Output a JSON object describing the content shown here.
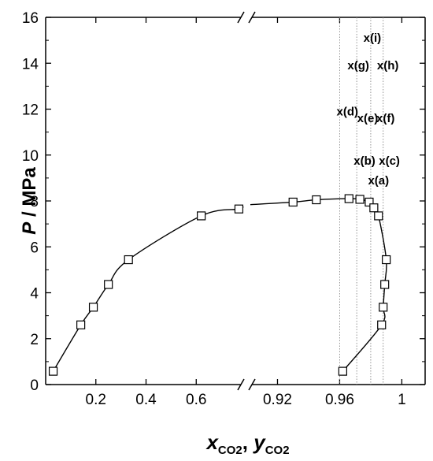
{
  "chart_data": {
    "type": "scatter",
    "ylabel": {
      "symbol": "P",
      "rest": " / MPa"
    },
    "xlabel": {
      "x_symbol": "x",
      "x_sub": "CO2",
      "sep": ", ",
      "y_symbol": "y",
      "y_sub": "CO2"
    },
    "ylim": [
      0,
      16
    ],
    "y_ticks": [
      0,
      2,
      4,
      6,
      8,
      10,
      12,
      14,
      16
    ],
    "x_left_segment": {
      "range": [
        0.0,
        0.8
      ],
      "ticks": [
        0.2,
        0.4,
        0.6
      ],
      "tick_labels": [
        "0.2",
        "0.4",
        "0.6"
      ]
    },
    "x_right_segment": {
      "range": [
        0.9,
        1.015
      ],
      "ticks": [
        0.92,
        0.96,
        1.0
      ],
      "tick_labels": [
        "0.92",
        "0.96",
        "1"
      ]
    },
    "axis_break": true,
    "grid": false,
    "legend": "none",
    "series": [
      {
        "marker": "open-square",
        "x": [
          0.03,
          0.14,
          0.19,
          0.25,
          0.33,
          0.62,
          0.77,
          0.93,
          0.945,
          0.966,
          0.973,
          0.979,
          0.982,
          0.985
        ],
        "y": [
          0.58,
          2.6,
          3.37,
          4.36,
          5.44,
          7.35,
          7.65,
          7.95,
          8.05,
          8.1,
          8.07,
          7.95,
          7.7,
          7.35
        ]
      },
      {
        "marker": "open-square",
        "x": [
          0.962,
          0.987,
          0.988,
          0.989,
          0.99
        ],
        "y": [
          0.58,
          2.6,
          3.37,
          4.36,
          5.44
        ]
      }
    ],
    "reference_lines": [
      {
        "x": 0.96
      },
      {
        "x": 0.971
      },
      {
        "x": 0.98
      },
      {
        "x": 0.988
      }
    ],
    "annotations": [
      {
        "text": "x(a)",
        "x": 0.985,
        "y": 8.9
      },
      {
        "text": "x(b)",
        "x": 0.976,
        "y": 9.75
      },
      {
        "text": "x(c)",
        "x": 0.992,
        "y": 9.75
      },
      {
        "text": "x(d)",
        "x": 0.965,
        "y": 11.9
      },
      {
        "text": "x(e)",
        "x": 0.978,
        "y": 11.6
      },
      {
        "text": "x(f)",
        "x": 0.9895,
        "y": 11.6
      },
      {
        "text": "x(g)",
        "x": 0.972,
        "y": 13.9
      },
      {
        "text": "x(h)",
        "x": 0.991,
        "y": 13.9
      },
      {
        "text": "x(i)",
        "x": 0.981,
        "y": 15.1
      }
    ]
  }
}
